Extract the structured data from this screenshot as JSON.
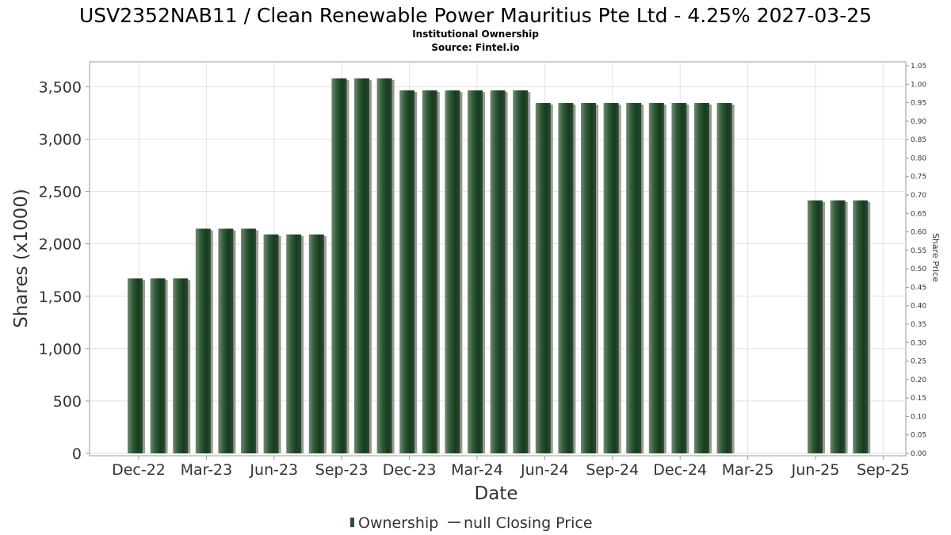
{
  "chart_data": {
    "type": "bar",
    "title": "USV2352NAB11 / Clean Renewable Power Mauritius Pte Ltd - 4.25% 2027-03-25",
    "subtitle": "Institutional Ownership",
    "source": "Source: Fintel.io",
    "xlabel": "Date",
    "ylabel": "Shares (x1000)",
    "ylabel_right": "Share Price",
    "ylim": [
      0,
      3700
    ],
    "ylim_right": [
      0,
      1.05
    ],
    "grid": true,
    "legend_position": "bottom",
    "x_tick_labels": [
      "Dec-22",
      "Mar-23",
      "Jun-23",
      "Sep-23",
      "Dec-23",
      "Mar-24",
      "Jun-24",
      "Sep-24",
      "Dec-24",
      "Mar-25",
      "Jun-25",
      "Sep-25"
    ],
    "y_tick_labels": [
      "0",
      "500",
      "1,000",
      "1,500",
      "2,000",
      "2,500",
      "3,000",
      "3,500"
    ],
    "y_tick_values": [
      0,
      500,
      1000,
      1500,
      2000,
      2500,
      3000,
      3500
    ],
    "y_right_tick_labels": [
      "0.00",
      "0.05",
      "0.10",
      "0.15",
      "0.20",
      "0.25",
      "0.30",
      "0.35",
      "0.40",
      "0.45",
      "0.50",
      "0.55",
      "0.60",
      "0.65",
      "0.70",
      "0.75",
      "0.80",
      "0.85",
      "0.90",
      "0.95",
      "1.00",
      "1.05"
    ],
    "series": [
      {
        "name": "Ownership",
        "color": "#2d4f35",
        "values": [
          1670,
          1670,
          1670,
          2145,
          2145,
          2145,
          2090,
          2090,
          2090,
          3580,
          3580,
          3580,
          3465,
          3465,
          3465,
          3465,
          3465,
          3465,
          3345,
          3345,
          3345,
          3345,
          3345,
          3345,
          3345,
          3345,
          3345,
          0,
          0,
          0,
          2415,
          2415,
          2415,
          0
        ]
      },
      {
        "name": "null Closing Price",
        "color": "#555555",
        "values": []
      }
    ]
  }
}
